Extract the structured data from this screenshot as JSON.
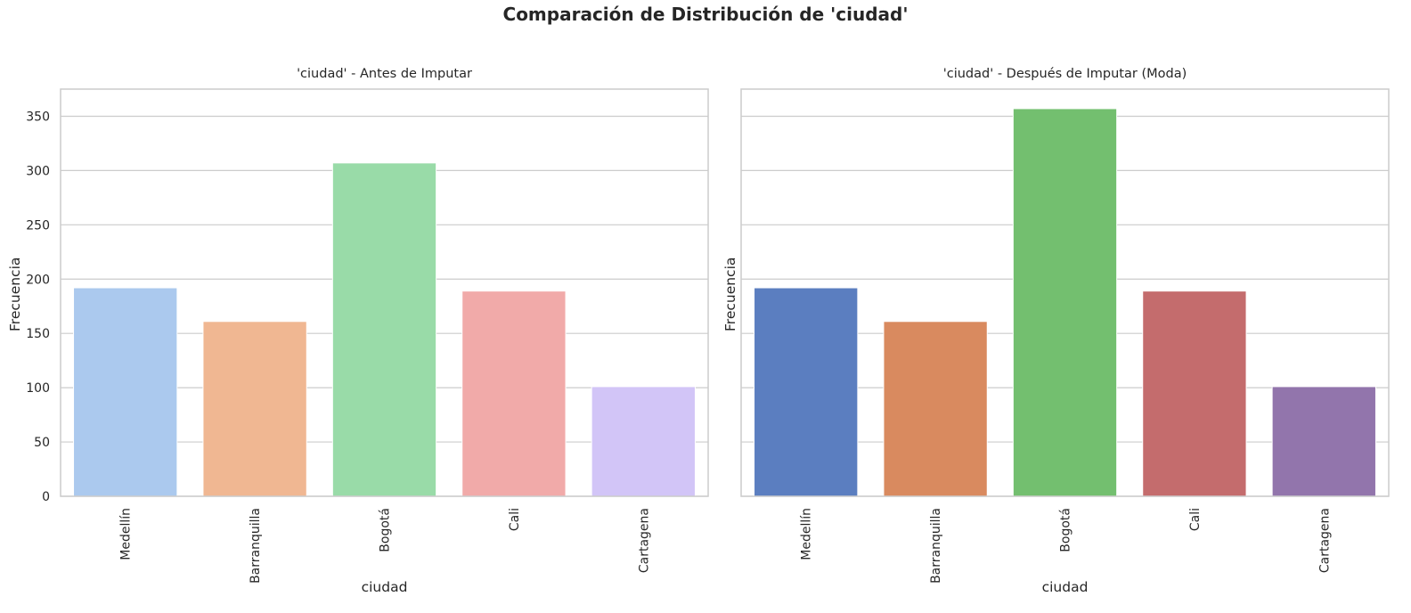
{
  "title": "Comparación de Distribución de 'ciudad'",
  "chart_data": [
    {
      "type": "bar",
      "title": "'ciudad' - Antes de Imputar",
      "xlabel": "ciudad",
      "ylabel": "Frecuencia",
      "categories": [
        "Medellín",
        "Barranquilla",
        "Bogotá",
        "Cali",
        "Cartagena"
      ],
      "values": [
        192,
        161,
        307,
        189,
        101
      ],
      "colors": [
        "#abc9ee",
        "#f0b792",
        "#99dba8",
        "#f1aaa9",
        "#d2c5f7"
      ],
      "ylim": [
        0,
        375
      ],
      "yticks": [
        "0",
        "50",
        "100",
        "150",
        "200",
        "250",
        "300",
        "350"
      ],
      "grid": "horizontal"
    },
    {
      "type": "bar",
      "title": "'ciudad' - Después de Imputar (Moda)",
      "xlabel": "ciudad",
      "ylabel": "Frecuencia",
      "categories": [
        "Medellín",
        "Barranquilla",
        "Bogotá",
        "Cali",
        "Cartagena"
      ],
      "values": [
        192,
        161,
        357,
        189,
        101
      ],
      "colors": [
        "#5b7ec0",
        "#d98a5f",
        "#73bf6f",
        "#c46c6d",
        "#9275ac"
      ],
      "ylim": [
        0,
        375
      ],
      "yticks": [
        "0",
        "50",
        "100",
        "150",
        "200",
        "250",
        "300",
        "350"
      ],
      "grid": "horizontal"
    }
  ]
}
